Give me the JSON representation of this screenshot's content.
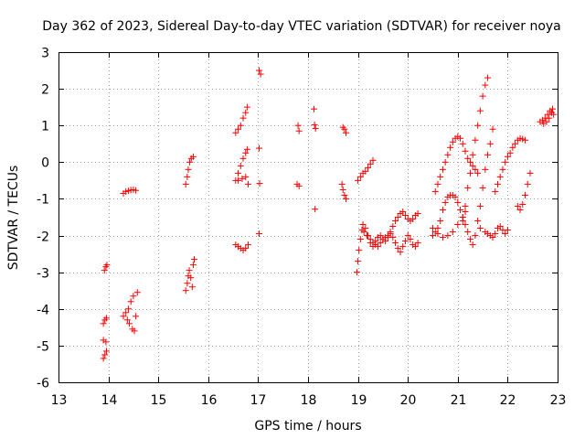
{
  "chart_data": {
    "type": "scatter",
    "title": "Day 362 of 2023, Sidereal Day-to-day VTEC variation (SDTVAR) for receiver noya",
    "xlabel": "GPS time / hours",
    "ylabel": "SDTVAR / TECUs",
    "xlim": [
      13,
      23
    ],
    "ylim": [
      -6,
      3
    ],
    "xticks": [
      "13",
      "14",
      "15",
      "16",
      "17",
      "18",
      "19",
      "20",
      "21",
      "22",
      "23"
    ],
    "yticks": [
      "-6",
      "-5",
      "-4",
      "-3",
      "-2",
      "-1",
      "0",
      "1",
      "2",
      "3"
    ],
    "grid": true,
    "legend": "none",
    "marker": "plus",
    "color": "#ff0000",
    "series": [
      {
        "points": [
          [
            13.92,
            -2.95
          ],
          [
            13.95,
            -2.85
          ],
          [
            13.97,
            -2.8
          ],
          [
            13.9,
            -4.4
          ],
          [
            13.93,
            -4.3
          ],
          [
            13.96,
            -4.25
          ],
          [
            13.9,
            -4.85
          ],
          [
            13.95,
            -4.9
          ],
          [
            13.9,
            -5.35
          ],
          [
            13.93,
            -5.25
          ],
          [
            13.96,
            -5.15
          ],
          [
            14.3,
            -0.85
          ],
          [
            14.35,
            -0.8
          ],
          [
            14.4,
            -0.78
          ],
          [
            14.45,
            -0.76
          ],
          [
            14.5,
            -0.75
          ],
          [
            14.55,
            -0.77
          ],
          [
            14.3,
            -4.2
          ],
          [
            14.35,
            -4.1
          ],
          [
            14.38,
            -4.3
          ],
          [
            14.4,
            -4.0
          ],
          [
            14.42,
            -4.4
          ],
          [
            14.45,
            -3.8
          ],
          [
            14.48,
            -4.55
          ],
          [
            14.5,
            -3.65
          ],
          [
            14.52,
            -4.6
          ],
          [
            14.55,
            -4.2
          ],
          [
            14.58,
            -3.55
          ],
          [
            15.55,
            -0.6
          ],
          [
            15.58,
            -0.4
          ],
          [
            15.6,
            -0.2
          ],
          [
            15.63,
            0.0
          ],
          [
            15.66,
            0.1
          ],
          [
            15.7,
            0.15
          ],
          [
            15.55,
            -3.5
          ],
          [
            15.58,
            -3.3
          ],
          [
            15.6,
            -3.1
          ],
          [
            15.62,
            -2.95
          ],
          [
            15.65,
            -3.15
          ],
          [
            15.68,
            -3.4
          ],
          [
            15.7,
            -2.8
          ],
          [
            15.72,
            -2.65
          ],
          [
            16.55,
            0.8
          ],
          [
            16.6,
            0.9
          ],
          [
            16.65,
            1.0
          ],
          [
            16.7,
            1.2
          ],
          [
            16.75,
            1.35
          ],
          [
            16.78,
            1.5
          ],
          [
            16.55,
            -0.5
          ],
          [
            16.6,
            -0.3
          ],
          [
            16.65,
            -0.1
          ],
          [
            16.7,
            0.1
          ],
          [
            16.75,
            0.25
          ],
          [
            16.78,
            0.35
          ],
          [
            16.6,
            -0.5
          ],
          [
            16.68,
            -0.45
          ],
          [
            16.75,
            -0.4
          ],
          [
            16.8,
            -0.6
          ],
          [
            16.55,
            -2.25
          ],
          [
            16.6,
            -2.3
          ],
          [
            16.65,
            -2.35
          ],
          [
            16.7,
            -2.4
          ],
          [
            16.75,
            -2.35
          ],
          [
            16.8,
            -2.25
          ],
          [
            17.02,
            2.5
          ],
          [
            17.05,
            2.4
          ],
          [
            17.02,
            0.38
          ],
          [
            17.03,
            -0.58
          ],
          [
            17.02,
            -1.95
          ],
          [
            17.8,
            1.0
          ],
          [
            17.82,
            0.85
          ],
          [
            17.78,
            -0.6
          ],
          [
            17.82,
            -0.65
          ],
          [
            18.12,
            1.45
          ],
          [
            18.13,
            1.02
          ],
          [
            18.15,
            0.92
          ],
          [
            18.14,
            -1.28
          ],
          [
            18.7,
            0.95
          ],
          [
            18.73,
            0.9
          ],
          [
            18.76,
            0.8
          ],
          [
            18.68,
            -0.6
          ],
          [
            18.7,
            -0.75
          ],
          [
            18.73,
            -0.9
          ],
          [
            18.76,
            -1.0
          ],
          [
            19.0,
            -0.5
          ],
          [
            19.05,
            -0.4
          ],
          [
            19.1,
            -0.3
          ],
          [
            19.15,
            -0.25
          ],
          [
            19.2,
            -0.15
          ],
          [
            19.25,
            -0.05
          ],
          [
            19.3,
            0.05
          ],
          [
            18.98,
            -3.0
          ],
          [
            19.0,
            -2.7
          ],
          [
            19.02,
            -2.4
          ],
          [
            19.05,
            -2.1
          ],
          [
            19.08,
            -1.85
          ],
          [
            19.12,
            -1.9
          ],
          [
            19.18,
            -2.0
          ],
          [
            19.25,
            -2.1
          ],
          [
            19.3,
            -2.2
          ],
          [
            19.35,
            -2.25
          ],
          [
            19.4,
            -2.3
          ],
          [
            19.45,
            -2.2
          ],
          [
            19.5,
            -2.1
          ],
          [
            19.55,
            -2.05
          ],
          [
            19.6,
            -2.0
          ],
          [
            19.65,
            -1.9
          ],
          [
            19.7,
            -1.75
          ],
          [
            19.75,
            -1.6
          ],
          [
            19.8,
            -1.5
          ],
          [
            19.85,
            -1.4
          ],
          [
            19.9,
            -1.35
          ],
          [
            19.95,
            -1.45
          ],
          [
            20.0,
            -1.55
          ],
          [
            20.05,
            -1.6
          ],
          [
            20.1,
            -1.55
          ],
          [
            20.15,
            -1.45
          ],
          [
            20.2,
            -1.4
          ],
          [
            19.1,
            -1.7
          ],
          [
            19.15,
            -1.8
          ],
          [
            19.2,
            -2.0
          ],
          [
            19.25,
            -2.2
          ],
          [
            19.3,
            -2.3
          ],
          [
            19.35,
            -2.15
          ],
          [
            19.4,
            -2.05
          ],
          [
            19.45,
            -2.0
          ],
          [
            19.5,
            -2.1
          ],
          [
            19.55,
            -2.15
          ],
          [
            19.6,
            -2.05
          ],
          [
            19.65,
            -1.95
          ],
          [
            19.7,
            -2.05
          ],
          [
            19.75,
            -2.2
          ],
          [
            19.8,
            -2.35
          ],
          [
            19.85,
            -2.45
          ],
          [
            19.9,
            -2.3
          ],
          [
            19.95,
            -2.15
          ],
          [
            20.0,
            -2.0
          ],
          [
            20.05,
            -2.1
          ],
          [
            20.1,
            -2.25
          ],
          [
            20.15,
            -2.3
          ],
          [
            20.2,
            -2.2
          ],
          [
            20.55,
            -0.8
          ],
          [
            20.6,
            -0.6
          ],
          [
            20.65,
            -0.4
          ],
          [
            20.7,
            -0.2
          ],
          [
            20.75,
            0.0
          ],
          [
            20.8,
            0.2
          ],
          [
            20.85,
            0.4
          ],
          [
            20.9,
            0.55
          ],
          [
            20.95,
            0.65
          ],
          [
            21.0,
            0.7
          ],
          [
            21.05,
            0.65
          ],
          [
            21.1,
            0.5
          ],
          [
            21.15,
            0.3
          ],
          [
            21.2,
            0.1
          ],
          [
            21.25,
            0.0
          ],
          [
            21.3,
            -0.1
          ],
          [
            21.35,
            -0.2
          ],
          [
            21.4,
            -0.3
          ],
          [
            20.5,
            -2.0
          ],
          [
            20.55,
            -1.9
          ],
          [
            20.6,
            -1.8
          ],
          [
            20.65,
            -1.6
          ],
          [
            20.7,
            -1.3
          ],
          [
            20.75,
            -1.1
          ],
          [
            20.8,
            -0.95
          ],
          [
            20.85,
            -0.9
          ],
          [
            20.9,
            -0.9
          ],
          [
            20.95,
            -0.95
          ],
          [
            21.0,
            -1.1
          ],
          [
            21.05,
            -1.3
          ],
          [
            21.1,
            -1.5
          ],
          [
            21.15,
            -1.7
          ],
          [
            21.2,
            -1.9
          ],
          [
            21.25,
            -2.1
          ],
          [
            21.3,
            -2.25
          ],
          [
            20.5,
            -1.8
          ],
          [
            20.6,
            -1.95
          ],
          [
            20.7,
            -2.05
          ],
          [
            20.8,
            -2.0
          ],
          [
            20.9,
            -1.9
          ],
          [
            21.0,
            -1.7
          ],
          [
            21.1,
            -1.5
          ],
          [
            21.15,
            -1.35
          ],
          [
            21.1,
            -1.6
          ],
          [
            21.15,
            -1.2
          ],
          [
            21.2,
            -0.7
          ],
          [
            21.25,
            -0.3
          ],
          [
            21.3,
            0.2
          ],
          [
            21.35,
            0.6
          ],
          [
            21.4,
            1.0
          ],
          [
            21.45,
            1.4
          ],
          [
            21.5,
            1.8
          ],
          [
            21.55,
            2.1
          ],
          [
            21.6,
            2.3
          ],
          [
            21.35,
            -2.0
          ],
          [
            21.4,
            -1.6
          ],
          [
            21.45,
            -1.2
          ],
          [
            21.5,
            -0.7
          ],
          [
            21.55,
            -0.2
          ],
          [
            21.6,
            0.2
          ],
          [
            21.65,
            0.5
          ],
          [
            21.7,
            0.9
          ],
          [
            21.45,
            -1.8
          ],
          [
            21.55,
            -1.9
          ],
          [
            21.6,
            -1.95
          ],
          [
            21.65,
            -2.0
          ],
          [
            21.7,
            -2.05
          ],
          [
            21.75,
            -1.95
          ],
          [
            21.8,
            -1.8
          ],
          [
            21.85,
            -1.75
          ],
          [
            21.9,
            -1.85
          ],
          [
            21.95,
            -1.95
          ],
          [
            22.0,
            -1.85
          ],
          [
            21.75,
            -0.8
          ],
          [
            21.8,
            -0.6
          ],
          [
            21.85,
            -0.4
          ],
          [
            21.9,
            -0.2
          ],
          [
            21.95,
            0.0
          ],
          [
            22.0,
            0.15
          ],
          [
            22.05,
            0.25
          ],
          [
            22.1,
            0.4
          ],
          [
            22.15,
            0.5
          ],
          [
            22.2,
            0.6
          ],
          [
            22.25,
            0.65
          ],
          [
            22.3,
            0.63
          ],
          [
            22.35,
            0.6
          ],
          [
            22.2,
            -1.2
          ],
          [
            22.25,
            -1.3
          ],
          [
            22.3,
            -1.15
          ],
          [
            22.35,
            -0.9
          ],
          [
            22.4,
            -0.6
          ],
          [
            22.45,
            -0.3
          ],
          [
            22.65,
            1.1
          ],
          [
            22.7,
            1.15
          ],
          [
            22.72,
            1.05
          ],
          [
            22.75,
            1.2
          ],
          [
            22.78,
            1.1
          ],
          [
            22.8,
            1.3
          ],
          [
            22.83,
            1.2
          ],
          [
            22.85,
            1.4
          ],
          [
            22.88,
            1.35
          ],
          [
            22.9,
            1.45
          ],
          [
            22.92,
            1.3
          ]
        ]
      }
    ]
  }
}
